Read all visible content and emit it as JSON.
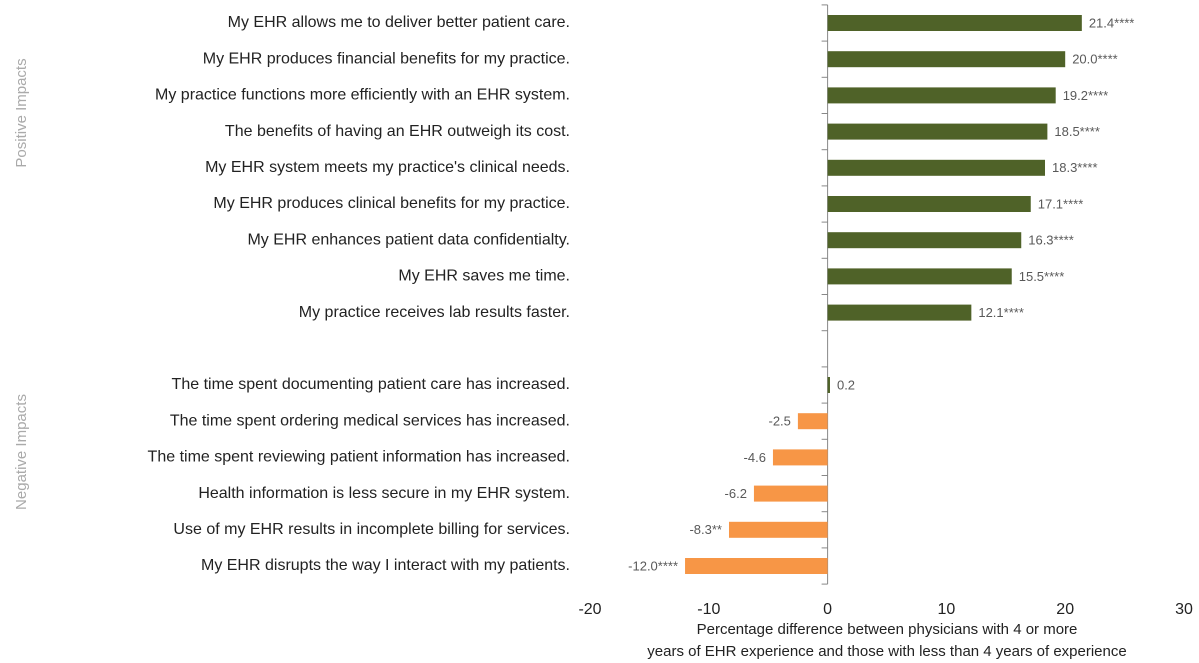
{
  "chart_data": {
    "type": "hbar",
    "group_labels": [
      "Positive Impacts",
      "Negative Impacts"
    ],
    "categories": [
      "My EHR allows me to deliver better patient care.",
      "My EHR produces financial benefits for my practice.",
      "My practice functions more efficiently with an EHR system.",
      "The benefits of having an EHR outweigh its cost.",
      "My EHR system meets my practice's clinical needs.",
      "My EHR produces clinical benefits for my practice.",
      "My EHR enhances patient data confidentialty.",
      "My EHR saves me time.",
      "My practice receives lab results faster.",
      null,
      "The time spent documenting patient care has increased.",
      "The time spent ordering medical services has increased.",
      "The time spent reviewing patient information has increased.",
      "Health information is less secure in my EHR system.",
      "Use of my EHR results in incomplete billing for services.",
      "My EHR disrupts the way I interact with my patients."
    ],
    "values": [
      21.4,
      20.0,
      19.2,
      18.5,
      18.3,
      17.1,
      16.3,
      15.5,
      12.1,
      null,
      0.2,
      -2.5,
      -4.6,
      -6.2,
      -8.3,
      -12.0
    ],
    "value_labels": [
      "21.4****",
      "20.0****",
      "19.2****",
      "18.5****",
      "18.3****",
      "17.1****",
      "16.3****",
      "15.5****",
      "12.1****",
      null,
      "0.2",
      "-2.5",
      "-4.6",
      "-6.2",
      "-8.3**",
      "-12.0****"
    ],
    "positive_color": "#4f6228",
    "negative_color": "#f79646",
    "xlim": [
      -20,
      30
    ],
    "xticks": [
      -20,
      -10,
      0,
      10,
      20,
      30
    ],
    "xlabel": [
      "Percentage difference between physicians with 4 or more",
      "years of EHR experience and those with less than 4 years of experience"
    ]
  }
}
